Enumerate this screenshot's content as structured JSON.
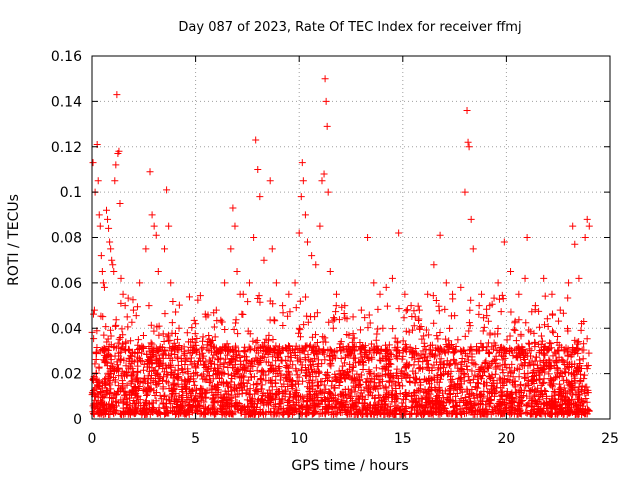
{
  "chart_data": {
    "type": "scatter",
    "title": "Day 087 of 2023, Rate Of TEC Index for receiver ffmj",
    "xlabel": "GPS time / hours",
    "ylabel": "ROTI / TECUs",
    "xlim": [
      0,
      25
    ],
    "ylim": [
      0,
      0.16
    ],
    "xticks": [
      0,
      5,
      10,
      15,
      20,
      25
    ],
    "xtick_labels": [
      "0",
      "5",
      "10",
      "15",
      "20",
      "25"
    ],
    "yticks": [
      0,
      0.02,
      0.04,
      0.06,
      0.08,
      0.1,
      0.12,
      0.14,
      0.16
    ],
    "ytick_labels": [
      "0",
      "0.02",
      "0.04",
      "0.06",
      "0.08",
      "0.1",
      "0.12",
      "0.14",
      "0.16"
    ],
    "grid": true,
    "marker": "+",
    "color": "#ff0000",
    "data_coverage_hours": [
      0,
      24
    ],
    "dense_band_upper_roti": 0.03,
    "series": [
      {
        "points": [
          [
            0.05,
            0.113
          ],
          [
            0.15,
            0.1
          ],
          [
            0.25,
            0.121
          ],
          [
            0.3,
            0.105
          ],
          [
            0.35,
            0.09
          ],
          [
            0.4,
            0.085
          ],
          [
            0.45,
            0.072
          ],
          [
            0.5,
            0.065
          ],
          [
            0.55,
            0.06
          ],
          [
            0.6,
            0.058
          ],
          [
            0.7,
            0.092
          ],
          [
            0.75,
            0.088
          ],
          [
            0.8,
            0.084
          ],
          [
            0.85,
            0.078
          ],
          [
            0.9,
            0.075
          ],
          [
            0.95,
            0.07
          ],
          [
            1.0,
            0.068
          ],
          [
            1.05,
            0.065
          ],
          [
            1.1,
            0.105
          ],
          [
            1.15,
            0.112
          ],
          [
            1.2,
            0.143
          ],
          [
            1.25,
            0.117
          ],
          [
            1.3,
            0.118
          ],
          [
            1.35,
            0.095
          ],
          [
            1.4,
            0.062
          ],
          [
            1.5,
            0.055
          ],
          [
            1.6,
            0.05
          ],
          [
            1.7,
            0.045
          ],
          [
            2.0,
            0.048
          ],
          [
            2.3,
            0.06
          ],
          [
            2.6,
            0.075
          ],
          [
            2.8,
            0.109
          ],
          [
            2.9,
            0.09
          ],
          [
            3.0,
            0.085
          ],
          [
            3.1,
            0.081
          ],
          [
            3.2,
            0.065
          ],
          [
            3.5,
            0.075
          ],
          [
            3.6,
            0.101
          ],
          [
            3.7,
            0.085
          ],
          [
            3.8,
            0.06
          ],
          [
            4.2,
            0.04
          ],
          [
            4.6,
            0.038
          ],
          [
            5.0,
            0.042
          ],
          [
            5.5,
            0.045
          ],
          [
            6.0,
            0.048
          ],
          [
            6.4,
            0.06
          ],
          [
            6.7,
            0.075
          ],
          [
            6.8,
            0.093
          ],
          [
            6.9,
            0.085
          ],
          [
            7.0,
            0.065
          ],
          [
            7.3,
            0.055
          ],
          [
            7.6,
            0.06
          ],
          [
            7.8,
            0.08
          ],
          [
            7.9,
            0.123
          ],
          [
            8.0,
            0.11
          ],
          [
            8.1,
            0.098
          ],
          [
            8.3,
            0.07
          ],
          [
            8.6,
            0.105
          ],
          [
            8.7,
            0.075
          ],
          [
            8.9,
            0.06
          ],
          [
            9.2,
            0.05
          ],
          [
            9.5,
            0.055
          ],
          [
            9.8,
            0.06
          ],
          [
            10.0,
            0.082
          ],
          [
            10.1,
            0.098
          ],
          [
            10.15,
            0.113
          ],
          [
            10.2,
            0.105
          ],
          [
            10.3,
            0.09
          ],
          [
            10.4,
            0.078
          ],
          [
            10.6,
            0.072
          ],
          [
            10.8,
            0.068
          ],
          [
            11.0,
            0.085
          ],
          [
            11.1,
            0.105
          ],
          [
            11.2,
            0.108
          ],
          [
            11.25,
            0.15
          ],
          [
            11.3,
            0.14
          ],
          [
            11.35,
            0.129
          ],
          [
            11.4,
            0.1
          ],
          [
            11.5,
            0.065
          ],
          [
            11.8,
            0.055
          ],
          [
            12.2,
            0.05
          ],
          [
            12.6,
            0.045
          ],
          [
            13.0,
            0.048
          ],
          [
            13.3,
            0.08
          ],
          [
            13.6,
            0.06
          ],
          [
            13.9,
            0.055
          ],
          [
            14.2,
            0.058
          ],
          [
            14.5,
            0.062
          ],
          [
            14.8,
            0.082
          ],
          [
            15.1,
            0.055
          ],
          [
            15.4,
            0.05
          ],
          [
            15.8,
            0.048
          ],
          [
            16.2,
            0.055
          ],
          [
            16.5,
            0.068
          ],
          [
            16.8,
            0.081
          ],
          [
            17.1,
            0.06
          ],
          [
            17.4,
            0.055
          ],
          [
            17.8,
            0.058
          ],
          [
            18.0,
            0.1
          ],
          [
            18.1,
            0.136
          ],
          [
            18.15,
            0.122
          ],
          [
            18.2,
            0.12
          ],
          [
            18.3,
            0.088
          ],
          [
            18.4,
            0.075
          ],
          [
            18.8,
            0.055
          ],
          [
            19.2,
            0.05
          ],
          [
            19.6,
            0.06
          ],
          [
            19.9,
            0.078
          ],
          [
            20.2,
            0.065
          ],
          [
            20.6,
            0.055
          ],
          [
            20.9,
            0.062
          ],
          [
            21.0,
            0.08
          ],
          [
            21.4,
            0.05
          ],
          [
            21.8,
            0.062
          ],
          [
            22.2,
            0.055
          ],
          [
            22.6,
            0.048
          ],
          [
            23.0,
            0.06
          ],
          [
            23.2,
            0.085
          ],
          [
            23.3,
            0.077
          ],
          [
            23.5,
            0.062
          ],
          [
            23.8,
            0.08
          ],
          [
            23.9,
            0.088
          ],
          [
            24.0,
            0.085
          ]
        ]
      }
    ]
  }
}
